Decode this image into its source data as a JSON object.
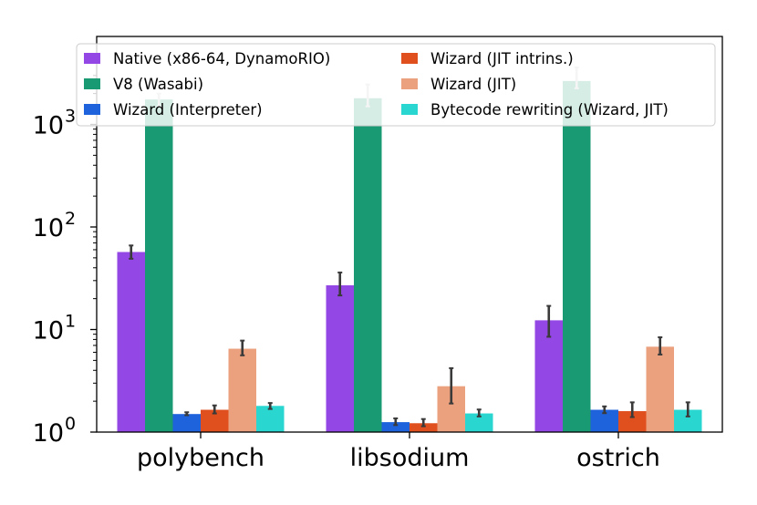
{
  "chart_data": {
    "type": "bar",
    "title": "",
    "xlabel": "",
    "ylabel": "",
    "yscale": "log",
    "ylim": [
      1,
      4000
    ],
    "y_ticks": [
      {
        "value": 1,
        "base": "10",
        "exp": "0"
      },
      {
        "value": 10,
        "base": "10",
        "exp": "1"
      },
      {
        "value": 100,
        "base": "10",
        "exp": "2"
      },
      {
        "value": 1000,
        "base": "10",
        "exp": "3"
      }
    ],
    "categories": [
      "polybench",
      "libsodium",
      "ostrich"
    ],
    "legend_position": "top",
    "series": [
      {
        "name": "Native (x86-64, DynamoRIO)",
        "color": "#9347e4",
        "values": [
          57,
          27,
          12.3
        ],
        "err_low": [
          49,
          21.5,
          8.5
        ],
        "err_high": [
          66,
          36,
          17
        ]
      },
      {
        "name": "V8 (Wasabi)",
        "color": "#1a9a72",
        "values": [
          1750,
          1800,
          2650
        ],
        "err_low": [
          1500,
          1500,
          2250
        ],
        "err_high": [
          2000,
          2450,
          3600
        ]
      },
      {
        "name": "Wizard (Interpreter)",
        "color": "#1f63dc",
        "values": [
          1.5,
          1.25,
          1.65
        ],
        "err_low": [
          1.46,
          1.17,
          1.53
        ],
        "err_high": [
          1.56,
          1.36,
          1.78
        ]
      },
      {
        "name": "Wizard (JIT intrins.)",
        "color": "#e0501e",
        "values": [
          1.65,
          1.22,
          1.6
        ],
        "err_low": [
          1.52,
          1.14,
          1.4
        ],
        "err_high": [
          1.82,
          1.34,
          1.95
        ]
      },
      {
        "name": "Wizard (JIT)",
        "color": "#eba07e",
        "values": [
          6.5,
          2.8,
          6.8
        ],
        "err_low": [
          5.6,
          1.9,
          5.7
        ],
        "err_high": [
          7.8,
          4.2,
          8.4
        ]
      },
      {
        "name": "Bytecode rewriting (Wizard, JIT)",
        "color": "#2ad6d0",
        "values": [
          1.8,
          1.52,
          1.65
        ],
        "err_low": [
          1.68,
          1.42,
          1.42
        ],
        "err_high": [
          1.92,
          1.66,
          1.95
        ]
      }
    ]
  }
}
